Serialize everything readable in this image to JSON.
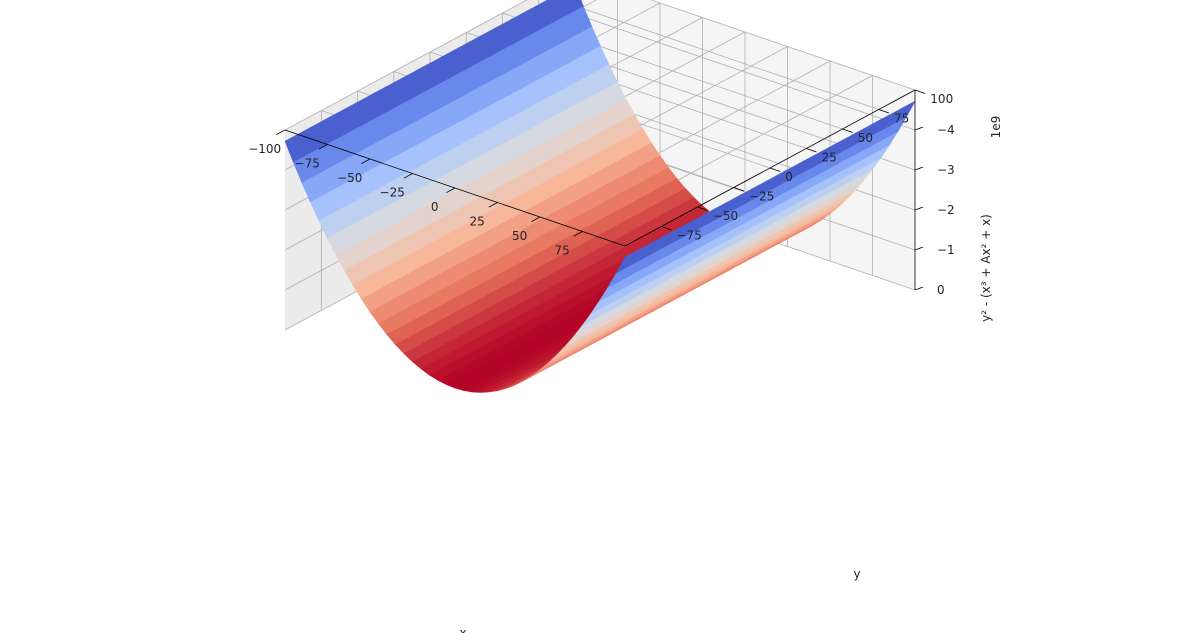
{
  "chart_data": {
    "type": "surface3d",
    "title": "",
    "xlabel": "x",
    "ylabel": "y",
    "zlabel": "y² - (x³ + Ax² + x)",
    "z_offset_text": "1e9",
    "x_ticks": [
      -100,
      -75,
      -50,
      -25,
      0,
      25,
      50,
      75
    ],
    "y_ticks": [
      -75,
      -50,
      -25,
      0,
      25,
      50,
      75,
      100
    ],
    "z_ticks": [
      0,
      -1,
      -2,
      -3,
      -4
    ],
    "x_tick_labels": [
      "−100",
      "−75",
      "−50",
      "−25",
      "0",
      "25",
      "50",
      "75"
    ],
    "y_tick_labels": [
      "−75",
      "−50",
      "−25",
      "0",
      "25",
      "50",
      "75",
      "100"
    ],
    "z_tick_labels": [
      "0",
      "−1",
      "−2",
      "−3",
      "−4"
    ],
    "xlim": [
      -100,
      100
    ],
    "ylim": [
      -100,
      100
    ],
    "zlim": [
      -4.9,
      0
    ],
    "z_unit_scale": 1000000000.0,
    "surface_profile": {
      "description_of_values": "surface height vs x (z in units of 1e9), constant along y",
      "x": [
        -100,
        -75,
        -50,
        -25,
        0,
        25,
        50,
        75,
        100
      ],
      "z": [
        -4.72,
        -2.86,
        -1.4,
        -0.4,
        0.0,
        -0.4,
        -1.4,
        -2.86,
        -4.72
      ]
    },
    "colormap": "coolwarm",
    "colormap_stops": [
      "#3b4cc0",
      "#6f92f3",
      "#aac7fd",
      "#dddddd",
      "#f7b89c",
      "#e7745b",
      "#b40426"
    ],
    "grid": true,
    "pane_color": "#f2f2f2",
    "grid_color": "#b0b0b0"
  }
}
